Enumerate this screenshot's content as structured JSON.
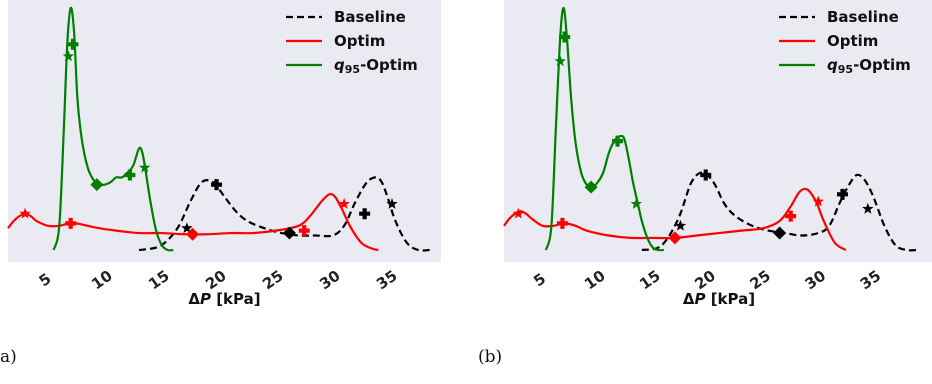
{
  "colors": {
    "background": "#EAEAF2",
    "baseline": "#000000",
    "optim": "#FF0000",
    "q95": "#008000"
  },
  "legend": {
    "position": "top-right",
    "entries": [
      {
        "label": "Baseline",
        "color": "#000000",
        "dash": "dashed"
      },
      {
        "label": "Optim",
        "color": "#FF0000",
        "dash": "solid"
      },
      {
        "label_main": "q",
        "label_sub": "95",
        "label_rest": "-Optim",
        "color": "#008000",
        "dash": "solid"
      }
    ]
  },
  "chart_data": [
    {
      "panel_label": "a)",
      "type": "line",
      "xlabel_main": "ΔP",
      "xlabel_unit": "[kPa]",
      "xlim": [
        1.5,
        39.5
      ],
      "ylim": [
        0,
        1
      ],
      "grid": false,
      "xticks": [
        5,
        10,
        15,
        20,
        25,
        30,
        35
      ],
      "series": [
        {
          "name": "Baseline",
          "color": "#000000",
          "dash": true,
          "x": [
            13,
            14.5,
            15.5,
            16.5,
            17.5,
            18.5,
            19.5,
            20.5,
            21.5,
            22.5,
            24,
            25.5,
            27,
            28.5,
            30,
            31,
            32,
            33,
            33.8,
            34.3,
            34.8,
            35.5,
            36.5,
            37.5,
            38.5
          ],
          "y": [
            0,
            0.01,
            0.04,
            0.1,
            0.2,
            0.28,
            0.28,
            0.22,
            0.16,
            0.12,
            0.09,
            0.07,
            0.06,
            0.06,
            0.06,
            0.1,
            0.2,
            0.28,
            0.3,
            0.28,
            0.22,
            0.12,
            0.03,
            0.0,
            0.0
          ]
        },
        {
          "name": "Optim",
          "color": "#FF0000",
          "dash": false,
          "x": [
            1.5,
            2,
            2.5,
            3,
            3.5,
            4,
            5,
            6,
            6.8,
            7.5,
            8.5,
            9.5,
            11,
            13,
            15,
            17,
            19,
            21,
            23,
            25,
            27,
            28,
            29,
            29.7,
            30.2,
            30.8,
            31.5,
            32.5,
            33.5,
            34
          ],
          "y": [
            0.09,
            0.12,
            0.14,
            0.15,
            0.14,
            0.12,
            0.1,
            0.1,
            0.11,
            0.11,
            0.1,
            0.09,
            0.08,
            0.07,
            0.07,
            0.065,
            0.065,
            0.07,
            0.07,
            0.08,
            0.1,
            0.14,
            0.2,
            0.23,
            0.22,
            0.17,
            0.1,
            0.03,
            0.005,
            0
          ]
        },
        {
          "name": "q95-Optim",
          "color": "#008000",
          "dash": false,
          "x": [
            5.5,
            6,
            6.4,
            6.7,
            7,
            7.3,
            7.6,
            8,
            8.5,
            9,
            9.5,
            10,
            10.5,
            11,
            11.5,
            12,
            12.5,
            13,
            13.3,
            13.6,
            14,
            14.5,
            15,
            15.5,
            16
          ],
          "y": [
            0,
            0.1,
            0.5,
            0.85,
            1.0,
            0.9,
            0.62,
            0.45,
            0.34,
            0.29,
            0.27,
            0.27,
            0.28,
            0.3,
            0.3,
            0.32,
            0.35,
            0.42,
            0.4,
            0.32,
            0.2,
            0.08,
            0.02,
            0,
            0
          ]
        }
      ],
      "markers": [
        {
          "series": "Baseline",
          "shape": "star",
          "x": 17.2,
          "y": 0.09
        },
        {
          "series": "Baseline",
          "shape": "plus",
          "x": 19.8,
          "y": 0.27
        },
        {
          "series": "Baseline",
          "shape": "diamond",
          "x": 26.2,
          "y": 0.07
        },
        {
          "series": "Baseline",
          "shape": "plus",
          "x": 32.8,
          "y": 0.15
        },
        {
          "series": "Baseline",
          "shape": "star",
          "x": 35.2,
          "y": 0.19
        },
        {
          "series": "Optim",
          "shape": "star",
          "x": 3.0,
          "y": 0.15
        },
        {
          "series": "Optim",
          "shape": "plus",
          "x": 7.0,
          "y": 0.11
        },
        {
          "series": "Optim",
          "shape": "diamond",
          "x": 17.7,
          "y": 0.065
        },
        {
          "series": "Optim",
          "shape": "plus",
          "x": 27.5,
          "y": 0.08
        },
        {
          "series": "Optim",
          "shape": "star",
          "x": 31.0,
          "y": 0.19
        },
        {
          "series": "q95-Optim",
          "shape": "star",
          "x": 6.8,
          "y": 0.8
        },
        {
          "series": "q95-Optim",
          "shape": "plus",
          "x": 7.2,
          "y": 0.85
        },
        {
          "series": "q95-Optim",
          "shape": "diamond",
          "x": 9.3,
          "y": 0.27
        },
        {
          "series": "q95-Optim",
          "shape": "plus",
          "x": 12.2,
          "y": 0.31
        },
        {
          "series": "q95-Optim",
          "shape": "star",
          "x": 13.5,
          "y": 0.34
        }
      ]
    },
    {
      "panel_label": "(b)",
      "type": "line",
      "xlabel_main": "ΔP",
      "xlabel_unit": "[kPa]",
      "xlim": [
        1.5,
        40.5
      ],
      "ylim": [
        0,
        1
      ],
      "grid": false,
      "xticks": [
        5,
        10,
        15,
        20,
        25,
        30,
        35
      ],
      "series": [
        {
          "name": "Baseline",
          "color": "#000000",
          "dash": true,
          "x": [
            14,
            15.5,
            16.5,
            17.5,
            18.5,
            19.5,
            20.5,
            21.5,
            22.5,
            24,
            25.5,
            27,
            28.5,
            30,
            31,
            32,
            32.8,
            33.5,
            34.2,
            35,
            36,
            37,
            38,
            39
          ],
          "y": [
            0,
            0.01,
            0.06,
            0.15,
            0.28,
            0.32,
            0.28,
            0.19,
            0.14,
            0.1,
            0.08,
            0.07,
            0.06,
            0.07,
            0.1,
            0.2,
            0.27,
            0.31,
            0.29,
            0.22,
            0.1,
            0.02,
            0,
            0
          ]
        },
        {
          "name": "Optim",
          "color": "#FF0000",
          "dash": false,
          "x": [
            1.5,
            2,
            2.5,
            3,
            3.5,
            4,
            5,
            6,
            7,
            8,
            9,
            11,
            13,
            15,
            17,
            19,
            21,
            23,
            25,
            26.5,
            27.5,
            28.3,
            29,
            29.8,
            30.5,
            31.5,
            32.5
          ],
          "y": [
            0.1,
            0.13,
            0.15,
            0.16,
            0.15,
            0.13,
            0.1,
            0.1,
            0.11,
            0.1,
            0.08,
            0.06,
            0.05,
            0.05,
            0.05,
            0.06,
            0.07,
            0.08,
            0.09,
            0.12,
            0.18,
            0.24,
            0.25,
            0.2,
            0.12,
            0.03,
            0
          ]
        },
        {
          "name": "q95-Optim",
          "color": "#008000",
          "dash": false,
          "x": [
            5.3,
            5.8,
            6.2,
            6.6,
            6.9,
            7.2,
            7.6,
            8,
            8.5,
            9,
            9.5,
            10,
            10.5,
            11,
            11.5,
            12,
            12.4,
            12.8,
            13.2,
            13.6,
            14,
            14.5,
            15,
            15.5,
            16
          ],
          "y": [
            0,
            0.1,
            0.5,
            0.88,
            1.0,
            0.88,
            0.62,
            0.44,
            0.32,
            0.27,
            0.26,
            0.28,
            0.32,
            0.4,
            0.45,
            0.47,
            0.46,
            0.38,
            0.28,
            0.2,
            0.12,
            0.05,
            0.01,
            0,
            0
          ]
        }
      ],
      "markers": [
        {
          "series": "Baseline",
          "shape": "star",
          "x": 17.5,
          "y": 0.1
        },
        {
          "series": "Baseline",
          "shape": "plus",
          "x": 19.8,
          "y": 0.31
        },
        {
          "series": "Baseline",
          "shape": "diamond",
          "x": 26.5,
          "y": 0.07
        },
        {
          "series": "Baseline",
          "shape": "plus",
          "x": 32.2,
          "y": 0.23
        },
        {
          "series": "Baseline",
          "shape": "star",
          "x": 34.5,
          "y": 0.17
        },
        {
          "series": "Optim",
          "shape": "star",
          "x": 2.8,
          "y": 0.15
        },
        {
          "series": "Optim",
          "shape": "plus",
          "x": 6.8,
          "y": 0.11
        },
        {
          "series": "Optim",
          "shape": "diamond",
          "x": 17.0,
          "y": 0.05
        },
        {
          "series": "Optim",
          "shape": "plus",
          "x": 27.5,
          "y": 0.14
        },
        {
          "series": "Optim",
          "shape": "star",
          "x": 30.0,
          "y": 0.2
        },
        {
          "series": "q95-Optim",
          "shape": "star",
          "x": 6.6,
          "y": 0.78
        },
        {
          "series": "q95-Optim",
          "shape": "plus",
          "x": 7.0,
          "y": 0.88
        },
        {
          "series": "q95-Optim",
          "shape": "diamond",
          "x": 9.4,
          "y": 0.26
        },
        {
          "series": "q95-Optim",
          "shape": "plus",
          "x": 11.8,
          "y": 0.45
        },
        {
          "series": "q95-Optim",
          "shape": "star",
          "x": 13.5,
          "y": 0.19
        }
      ]
    }
  ]
}
